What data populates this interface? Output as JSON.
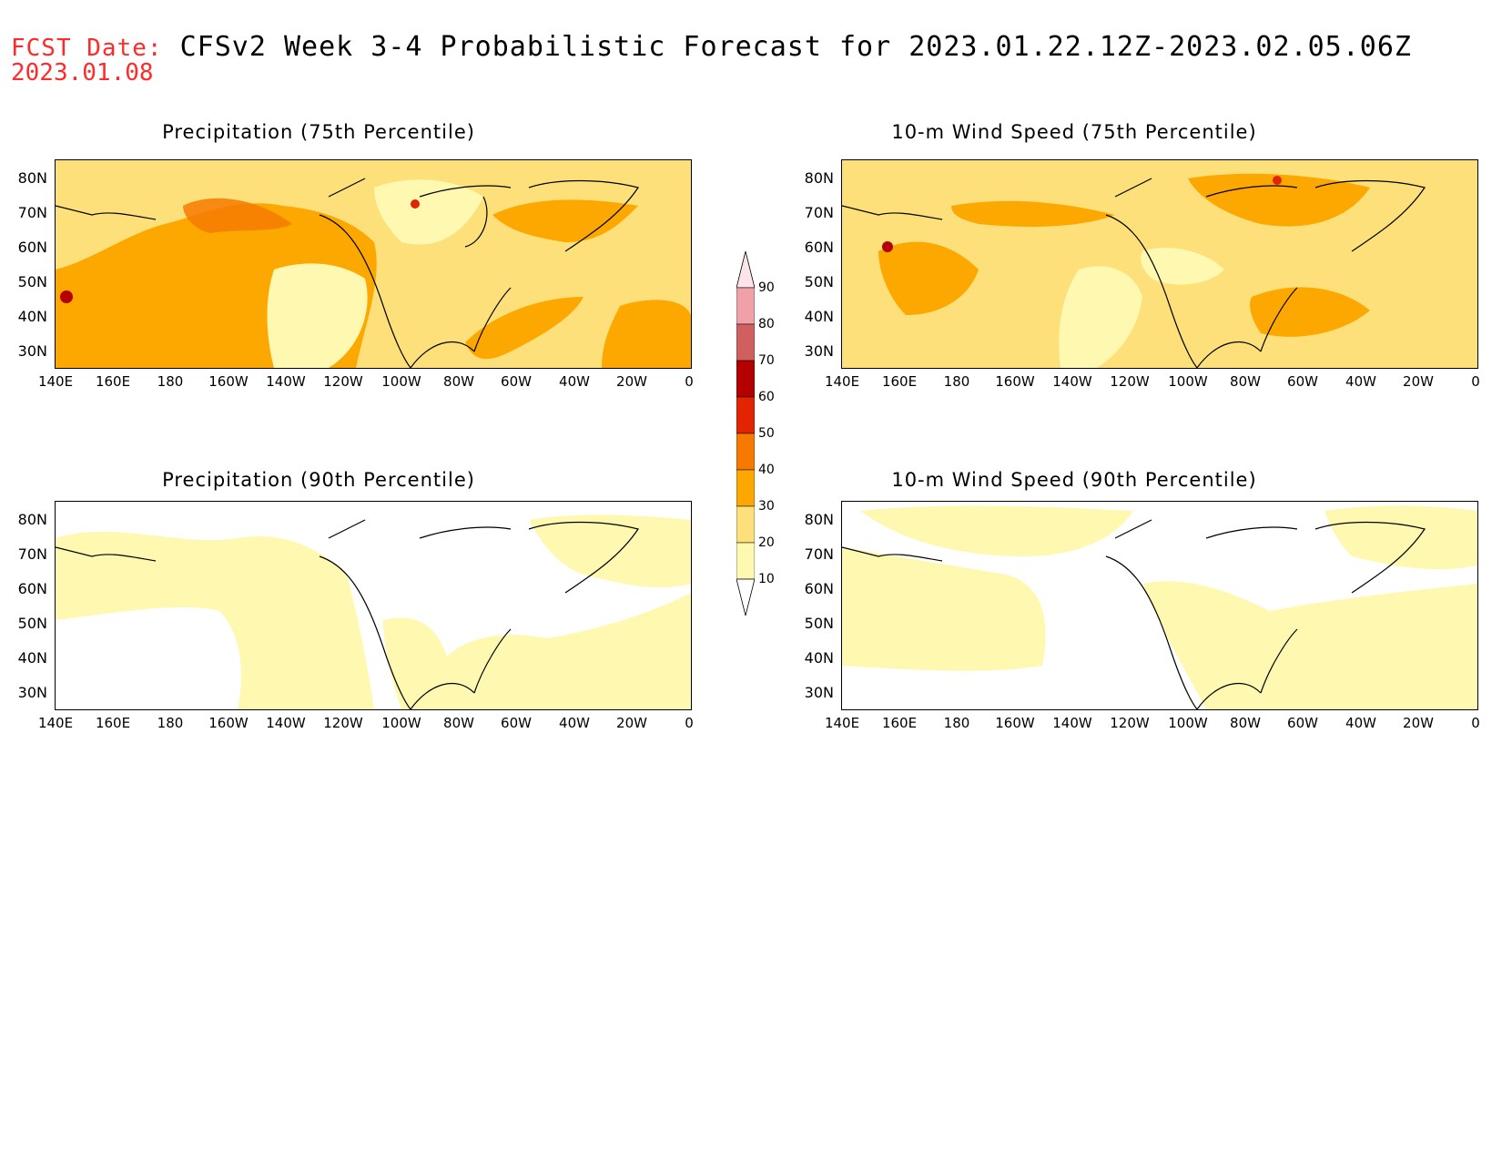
{
  "header": {
    "fcst_label": "FCST Date:",
    "title": "CFSv2 Week 3-4 Probabilistic Forecast for 2023.01.22.12Z-2023.02.05.06Z",
    "fcst_date": "2023.01.08"
  },
  "panels": [
    {
      "id": "precip75",
      "title": "Precipitation (75th Percentile)"
    },
    {
      "id": "wind75",
      "title": "10-m Wind Speed (75th Percentile)"
    },
    {
      "id": "precip90",
      "title": "Precipitation (90th Percentile)"
    },
    {
      "id": "wind90",
      "title": "10-m Wind Speed (90th Percentile)"
    }
  ],
  "axes": {
    "lat_labels": [
      "80N",
      "70N",
      "60N",
      "50N",
      "40N",
      "30N"
    ],
    "lon_labels": [
      "140E",
      "160E",
      "180",
      "160W",
      "140W",
      "120W",
      "100W",
      "80W",
      "60W",
      "40W",
      "20W",
      "0"
    ]
  },
  "colorbar": {
    "levels": [
      10,
      20,
      30,
      40,
      50,
      60,
      70,
      80,
      90
    ],
    "labels": [
      "90",
      "80",
      "70",
      "60",
      "50",
      "40",
      "30",
      "20",
      "10"
    ],
    "colors": [
      "#fff8b0",
      "#fde07a",
      "#fca800",
      "#f67a00",
      "#e22400",
      "#b40000",
      "#d06060",
      "#f0a0a8",
      "#fce4e8"
    ]
  }
}
